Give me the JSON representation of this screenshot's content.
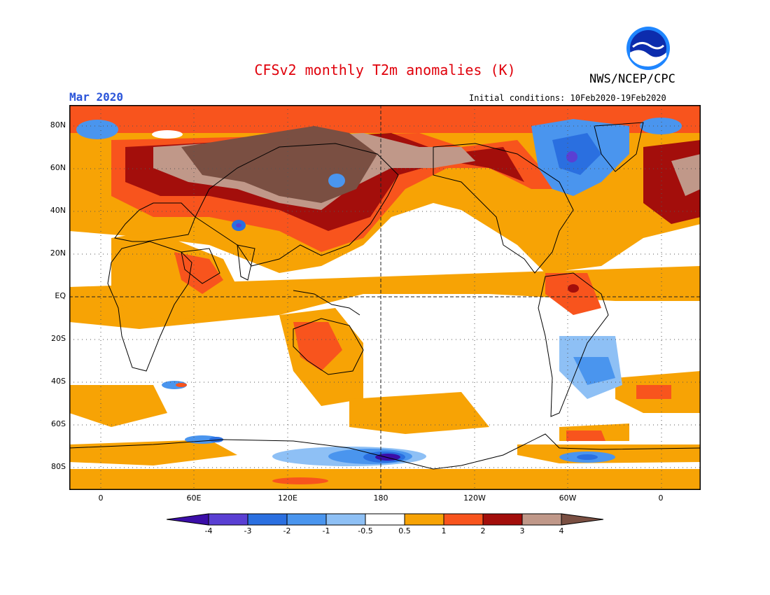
{
  "header": {
    "title": "CFSv2 monthly T2m anomalies (K)",
    "agency": "NWS/NCEP/CPC",
    "logo_text": "NOAA",
    "target_month": "Mar 2020",
    "initial_conditions": "Initial conditions: 10Feb2020-19Feb2020"
  },
  "axes": {
    "lat_labels": [
      "80N",
      "60N",
      "40N",
      "20N",
      "EQ",
      "20S",
      "40S",
      "60S",
      "80S"
    ],
    "lon_labels": [
      "0",
      "60E",
      "120E",
      "180",
      "120W",
      "60W",
      "0"
    ]
  },
  "colorbar": {
    "tick_labels": [
      "-4",
      "-3",
      "-2",
      "-1",
      "-0.5",
      "0.5",
      "1",
      "2",
      "3",
      "4"
    ],
    "colors": [
      "#3b0ea8",
      "#5a3fd3",
      "#2a6fe0",
      "#4a95ee",
      "#8ec0f5",
      "#ffffff",
      "#f7a305",
      "#f8541d",
      "#a30e0b",
      "#c09889",
      "#7a4f42"
    ]
  },
  "colors": {
    "title": "#e0000b",
    "date": "#2a54d9",
    "frame": "#000000",
    "land_outline": "#000000"
  }
}
